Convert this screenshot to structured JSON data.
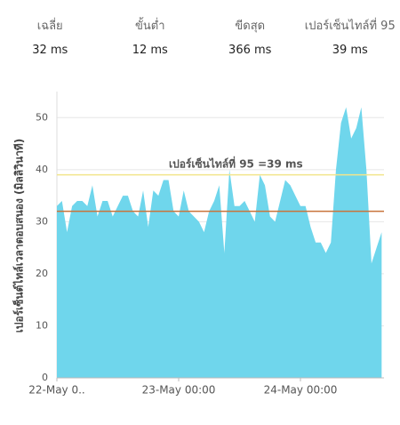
{
  "stats": [
    {
      "label": "เฉลี่ย",
      "value": "32 ms"
    },
    {
      "label": "ขั้นต่ำ",
      "value": "12 ms"
    },
    {
      "label": "ขีดสุด",
      "value": "366 ms"
    },
    {
      "label": "เปอร์เซ็นไทล์ที่ 95",
      "value": "39 ms"
    }
  ],
  "chart_data": {
    "type": "area",
    "y_label": "เปอร์เซ็นต์ไทล์เวลาตอบสนอง (มิลลิวินาที)",
    "categories": [
      "22-May 0..",
      null,
      null,
      null,
      null,
      null,
      null,
      null,
      null,
      null,
      null,
      null,
      null,
      null,
      null,
      null,
      null,
      null,
      null,
      null,
      null,
      null,
      null,
      null,
      "23-May 00:00",
      null,
      null,
      null,
      null,
      null,
      null,
      null,
      null,
      null,
      null,
      null,
      null,
      null,
      null,
      null,
      null,
      null,
      null,
      null,
      null,
      null,
      null,
      null,
      "24-May 00:00",
      null,
      null,
      null,
      null,
      null,
      null,
      null,
      null,
      null,
      null,
      null,
      null,
      null,
      null,
      null,
      null
    ],
    "values": [
      33,
      34,
      28,
      33,
      34,
      34,
      33,
      37,
      31,
      34,
      34,
      31,
      33,
      35,
      35,
      32,
      31,
      36,
      29,
      36,
      35,
      38,
      38,
      32,
      31,
      36,
      32,
      31,
      30,
      28,
      32,
      34,
      37,
      24,
      40,
      33,
      33,
      34,
      32,
      30,
      39,
      37,
      31,
      30,
      34,
      38,
      37,
      35,
      33,
      33,
      29,
      26,
      26,
      24,
      26,
      40,
      49,
      52,
      46,
      48,
      52,
      40,
      22,
      25,
      28
    ],
    "color": "#6fd6ec",
    "ylim": [
      0,
      55
    ],
    "yticks": [
      0,
      10,
      20,
      30,
      40,
      50
    ],
    "grid": true,
    "reference_lines": [
      {
        "value": 39,
        "color": "#f2e58c"
      },
      {
        "value": 32,
        "color": "#c9733a"
      }
    ],
    "annotation": "เปอร์เซ็นไทล์ที่ 95 =39 ms"
  }
}
